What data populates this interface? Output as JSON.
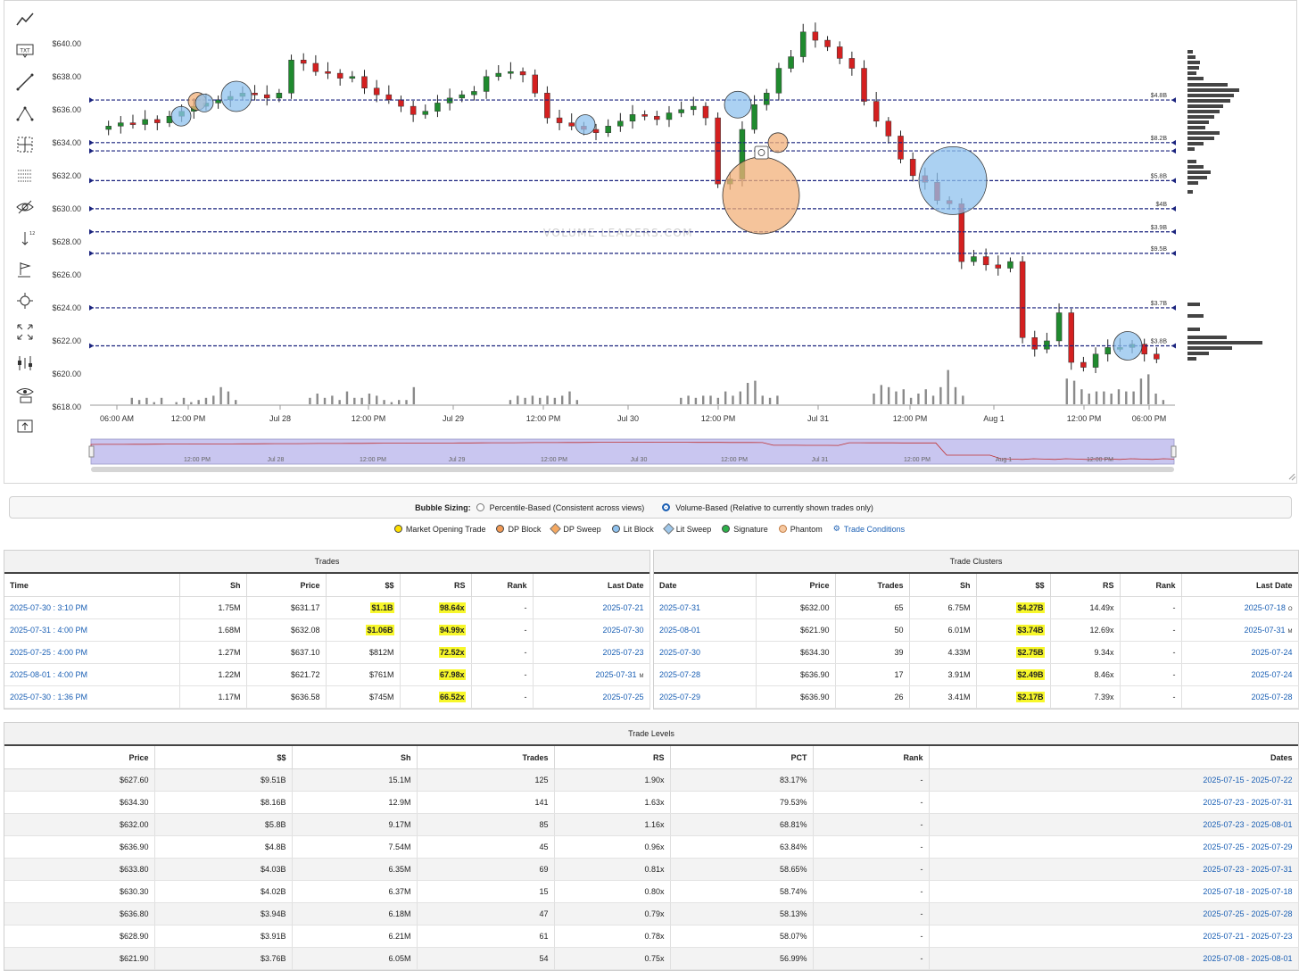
{
  "chart_data": {
    "type": "candlestick",
    "y_ticks": [
      "$640.00",
      "$638.00",
      "$636.00",
      "$634.00",
      "$632.00",
      "$630.00",
      "$628.00",
      "$626.00",
      "$624.00",
      "$622.00",
      "$620.00",
      "$618.00"
    ],
    "ylim": [
      618,
      641.5
    ],
    "x_ticks": [
      "06:00 AM",
      "12:00 PM",
      "Jul 28",
      "12:00 PM",
      "Jul 29",
      "12:00 PM",
      "Jul 30",
      "12:00 PM",
      "Jul 31",
      "12:00 PM",
      "Aug 1",
      "12:00 PM",
      "06:00 PM"
    ],
    "navigator_ticks": [
      "12:00 PM",
      "Jul 28",
      "12:00 PM",
      "Jul 29",
      "12:00 PM",
      "Jul 30",
      "12:00 PM",
      "Jul 31",
      "12:00 PM",
      "Aug 1",
      "12:00 PM"
    ],
    "watermark": "VOLUME LEADERS.COM",
    "levels": [
      {
        "price": 636.58,
        "label": "$4.8B"
      },
      {
        "price": 634.0,
        "label": "$8.2B"
      },
      {
        "price": 633.5,
        "label": ""
      },
      {
        "price": 631.7,
        "label": "$5.8B"
      },
      {
        "price": 630.0,
        "label": "$4B"
      },
      {
        "price": 628.6,
        "label": "$3.9B"
      },
      {
        "price": 627.3,
        "label": "$9.5B"
      },
      {
        "price": 624.0,
        "label": "$3.7B"
      },
      {
        "price": 621.7,
        "label": "$3.8B"
      }
    ],
    "path": [
      634.8,
      635.0,
      635.2,
      635.1,
      635.4,
      635.2,
      635.6,
      635.9,
      636.2,
      636.4,
      636.6,
      636.8,
      637.0,
      636.9,
      636.7,
      637.0,
      639.0,
      638.8,
      638.3,
      638.2,
      637.9,
      638.0,
      637.3,
      636.9,
      636.6,
      636.2,
      635.7,
      635.9,
      636.4,
      636.7,
      636.9,
      637.1,
      638.0,
      638.2,
      638.3,
      638.1,
      637.0,
      635.5,
      635.2,
      635.0,
      634.8,
      634.6,
      635.0,
      635.3,
      635.7,
      635.6,
      635.4,
      635.8,
      636.0,
      636.2,
      635.5,
      631.5,
      631.8,
      634.8,
      636.3,
      637.0,
      638.5,
      639.2,
      640.7,
      640.2,
      639.8,
      639.1,
      638.5,
      636.5,
      635.3,
      634.4,
      633.0,
      632.0,
      631.6,
      630.5,
      630.3,
      626.8,
      627.1,
      626.6,
      626.4,
      626.8,
      622.2,
      621.5,
      622.0,
      623.7,
      620.7,
      620.4,
      621.2,
      621.6,
      621.6,
      621.8,
      621.2,
      620.9
    ],
    "volume": [
      0,
      0,
      0,
      0,
      0,
      3,
      2,
      3,
      1,
      3,
      0,
      1,
      3,
      1,
      2,
      3,
      4,
      8,
      6,
      2,
      0,
      0,
      0,
      0,
      0,
      0,
      0,
      0,
      0,
      3,
      5,
      3,
      4,
      2,
      6,
      3,
      3,
      5,
      4,
      2,
      1,
      2,
      2,
      8,
      0,
      0,
      0,
      0,
      0,
      0,
      0,
      0,
      0,
      0,
      0,
      0,
      2,
      4,
      3,
      4,
      3,
      4,
      3,
      4,
      6,
      2,
      0,
      0,
      0,
      0,
      0,
      0,
      0,
      0,
      0,
      0,
      0,
      0,
      0,
      3,
      4,
      3,
      4,
      4,
      3,
      6,
      4,
      6,
      10,
      11,
      4,
      3,
      4,
      0,
      0,
      0,
      0,
      0,
      0,
      0,
      0,
      0,
      0,
      0,
      0,
      5,
      9,
      8,
      6,
      7,
      3,
      5,
      7,
      4,
      8,
      16,
      8,
      4,
      0,
      0,
      0,
      0,
      0,
      0,
      0,
      0,
      0,
      0,
      0,
      0,
      0,
      12,
      11,
      7,
      5,
      6,
      6,
      5,
      7,
      6,
      6,
      12,
      14,
      5,
      2
    ]
  },
  "legend": {
    "bubble_sizing": "Bubble Sizing:",
    "percentile": "Percentile-Based (Consistent across views)",
    "volume_based": "Volume-Based (Relative to currently shown trades only)",
    "items": [
      "Market Opening Trade",
      "DP Block",
      "DP Sweep",
      "Lit Block",
      "Lit Sweep",
      "Signature",
      "Phantom"
    ],
    "trade_conditions": "Trade Conditions",
    "colors": {
      "market_opening": "#ffe000",
      "dp_block": "#f29a55",
      "dp_sweep": "#f5a860",
      "lit_block": "#8fc2ee",
      "lit_sweep": "#9ec7ea",
      "signature": "#2db04a",
      "phantom": "#f6c8a0"
    }
  },
  "trades": {
    "title": "Trades",
    "headers": [
      "Time",
      "Sh",
      "Price",
      "$$",
      "RS",
      "Rank",
      "Last Date"
    ],
    "rows": [
      {
        "time": "2025-07-30 : 3:10 PM",
        "sh": "1.75M",
        "price": "$631.17",
        "dollars": "$1.1B",
        "rs": "98.64x",
        "rank": "-",
        "last": "2025-07-21",
        "sup": ""
      },
      {
        "time": "2025-07-31 : 4:00 PM",
        "sh": "1.68M",
        "price": "$632.08",
        "dollars": "$1.06B",
        "rs": "94.99x",
        "rank": "-",
        "last": "2025-07-30",
        "sup": ""
      },
      {
        "time": "2025-07-25 : 4:00 PM",
        "sh": "1.27M",
        "price": "$637.10",
        "dollars": "$812M",
        "rs": "72.52x",
        "rank": "-",
        "last": "2025-07-23",
        "sup": ""
      },
      {
        "time": "2025-08-01 : 4:00 PM",
        "sh": "1.22M",
        "price": "$621.72",
        "dollars": "$761M",
        "rs": "67.98x",
        "rank": "-",
        "last": "2025-07-31",
        "sup": "M"
      },
      {
        "time": "2025-07-30 : 1:36 PM",
        "sh": "1.17M",
        "price": "$636.58",
        "dollars": "$745M",
        "rs": "66.52x",
        "rank": "-",
        "last": "2025-07-25",
        "sup": ""
      }
    ]
  },
  "clusters": {
    "title": "Trade Clusters",
    "headers": [
      "Date",
      "Price",
      "Trades",
      "Sh",
      "$$",
      "RS",
      "Rank",
      "Last Date"
    ],
    "rows": [
      {
        "date": "2025-07-31",
        "price": "$632.00",
        "trades": "65",
        "sh": "6.75M",
        "dollars": "$4.27B",
        "rs": "14.49x",
        "rank": "-",
        "last": "2025-07-18",
        "sup": "O"
      },
      {
        "date": "2025-08-01",
        "price": "$621.90",
        "trades": "50",
        "sh": "6.01M",
        "dollars": "$3.74B",
        "rs": "12.69x",
        "rank": "-",
        "last": "2025-07-31",
        "sup": "M"
      },
      {
        "date": "2025-07-30",
        "price": "$634.30",
        "trades": "39",
        "sh": "4.33M",
        "dollars": "$2.75B",
        "rs": "9.34x",
        "rank": "-",
        "last": "2025-07-24",
        "sup": ""
      },
      {
        "date": "2025-07-28",
        "price": "$636.90",
        "trades": "17",
        "sh": "3.91M",
        "dollars": "$2.49B",
        "rs": "8.46x",
        "rank": "-",
        "last": "2025-07-24",
        "sup": ""
      },
      {
        "date": "2025-07-29",
        "price": "$636.90",
        "trades": "26",
        "sh": "3.41M",
        "dollars": "$2.17B",
        "rs": "7.39x",
        "rank": "-",
        "last": "2025-07-28",
        "sup": ""
      }
    ]
  },
  "levels": {
    "title": "Trade Levels",
    "headers": [
      "Price",
      "$$",
      "Sh",
      "Trades",
      "RS",
      "PCT",
      "Rank",
      "Dates"
    ],
    "rows": [
      {
        "price": "$627.60",
        "dollars": "$9.51B",
        "sh": "15.1M",
        "trades": "125",
        "rs": "1.90x",
        "pct": "83.17%",
        "rank": "-",
        "dates": "2025-07-15 - 2025-07-22"
      },
      {
        "price": "$634.30",
        "dollars": "$8.16B",
        "sh": "12.9M",
        "trades": "141",
        "rs": "1.63x",
        "pct": "79.53%",
        "rank": "-",
        "dates": "2025-07-23 - 2025-07-31"
      },
      {
        "price": "$632.00",
        "dollars": "$5.8B",
        "sh": "9.17M",
        "trades": "85",
        "rs": "1.16x",
        "pct": "68.81%",
        "rank": "-",
        "dates": "2025-07-23 - 2025-08-01"
      },
      {
        "price": "$636.90",
        "dollars": "$4.8B",
        "sh": "7.54M",
        "trades": "45",
        "rs": "0.96x",
        "pct": "63.84%",
        "rank": "-",
        "dates": "2025-07-25 - 2025-07-29"
      },
      {
        "price": "$633.80",
        "dollars": "$4.03B",
        "sh": "6.35M",
        "trades": "69",
        "rs": "0.81x",
        "pct": "58.65%",
        "rank": "-",
        "dates": "2025-07-23 - 2025-07-31"
      },
      {
        "price": "$630.30",
        "dollars": "$4.02B",
        "sh": "6.37M",
        "trades": "15",
        "rs": "0.80x",
        "pct": "58.74%",
        "rank": "-",
        "dates": "2025-07-18 - 2025-07-18"
      },
      {
        "price": "$636.80",
        "dollars": "$3.94B",
        "sh": "6.18M",
        "trades": "47",
        "rs": "0.79x",
        "pct": "58.13%",
        "rank": "-",
        "dates": "2025-07-25 - 2025-07-28"
      },
      {
        "price": "$628.90",
        "dollars": "$3.91B",
        "sh": "6.21M",
        "trades": "61",
        "rs": "0.78x",
        "pct": "58.07%",
        "rank": "-",
        "dates": "2025-07-21 - 2025-07-23"
      },
      {
        "price": "$621.90",
        "dollars": "$3.76B",
        "sh": "6.05M",
        "trades": "54",
        "rs": "0.75x",
        "pct": "56.99%",
        "rank": "-",
        "dates": "2025-07-08 - 2025-08-01"
      }
    ]
  }
}
